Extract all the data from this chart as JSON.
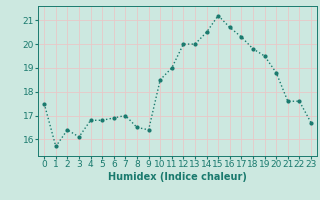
{
  "x": [
    0,
    1,
    2,
    3,
    4,
    5,
    6,
    7,
    8,
    9,
    10,
    11,
    12,
    13,
    14,
    15,
    16,
    17,
    18,
    19,
    20,
    21,
    22,
    23
  ],
  "y": [
    17.5,
    15.7,
    16.4,
    16.1,
    16.8,
    16.8,
    16.9,
    17.0,
    16.5,
    16.4,
    18.5,
    19.0,
    20.0,
    20.0,
    20.5,
    21.2,
    20.7,
    20.3,
    19.8,
    19.5,
    18.8,
    17.6,
    17.6,
    16.7
  ],
  "line_color": "#1a7a6e",
  "bg_color": "#cce8e0",
  "grid_color": "#e8c8c8",
  "xlabel": "Humidex (Indice chaleur)",
  "ylabel_ticks": [
    16,
    17,
    18,
    19,
    20,
    21
  ],
  "xlim": [
    -0.5,
    23.5
  ],
  "ylim": [
    15.3,
    21.6
  ],
  "marker": "o",
  "markersize": 2.0,
  "linewidth": 1.0,
  "xlabel_fontsize": 7,
  "tick_fontsize": 6.5
}
